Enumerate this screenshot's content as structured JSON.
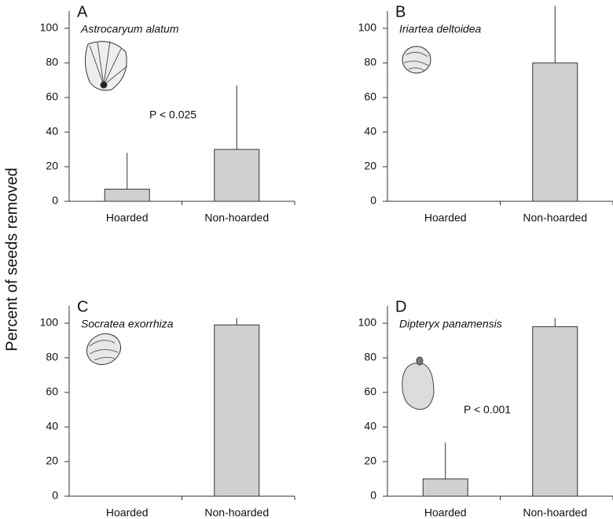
{
  "y_label": "Percent of seeds removed",
  "chart_data": [
    {
      "type": "bar",
      "panel": "A",
      "species": "Astrocaryum alatum",
      "annotation": "P < 0.025",
      "categories": [
        "Hoarded",
        "Non-hoarded"
      ],
      "values": [
        7,
        30
      ],
      "errors": [
        21,
        37
      ],
      "color": "#d0d0d0",
      "ylim": [
        0,
        110
      ],
      "yticks": [
        0,
        20,
        40,
        60,
        80,
        100
      ]
    },
    {
      "type": "bar",
      "panel": "B",
      "species": "Iriartea deltoidea",
      "categories": [
        "Hoarded",
        "Non-hoarded"
      ],
      "values": [
        0,
        80
      ],
      "errors": [
        null,
        33
      ],
      "color": "#d0d0d0",
      "ylim": [
        0,
        110
      ],
      "yticks": [
        0,
        20,
        40,
        60,
        80,
        100
      ]
    },
    {
      "type": "bar",
      "panel": "C",
      "species": "Socratea exorrhiza",
      "categories": [
        "Hoarded",
        "Non-hoarded"
      ],
      "values": [
        0,
        99
      ],
      "errors": [
        null,
        4
      ],
      "color": "#d0d0d0",
      "ylim": [
        0,
        110
      ],
      "yticks": [
        0,
        20,
        40,
        60,
        80,
        100
      ]
    },
    {
      "type": "bar",
      "panel": "D",
      "species": "Dipteryx panamensis",
      "annotation": "P < 0.001",
      "categories": [
        "Hoarded",
        "Non-hoarded"
      ],
      "values": [
        10,
        98
      ],
      "errors": [
        21,
        5
      ],
      "color": "#d0d0d0",
      "ylim": [
        0,
        110
      ],
      "yticks": [
        0,
        20,
        40,
        60,
        80,
        100
      ]
    }
  ]
}
